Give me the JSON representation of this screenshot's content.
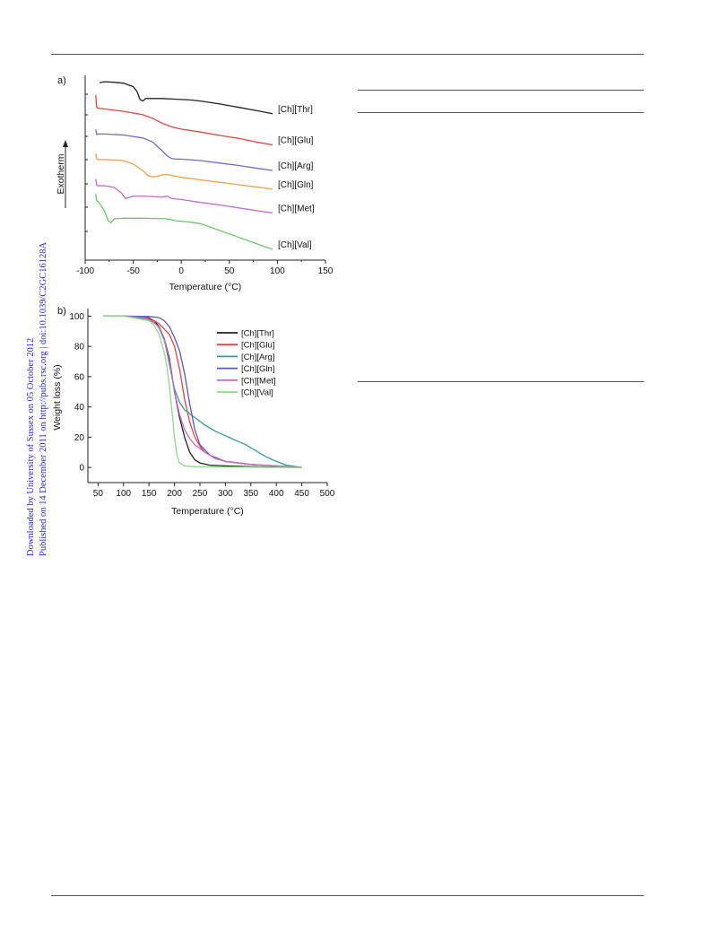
{
  "sidebar": {
    "line1": "Downloaded by University of Sussex on 05 October 2012",
    "line2": "Published on 14 December 2011 on http://pubs.rsc.org | doi:10.1039/C2GC16128A"
  },
  "chart_data": [
    {
      "type": "line",
      "panel_label": "a)",
      "xlabel": "Temperature (°C)",
      "ylabel": "Exotherm",
      "xlim": [
        -100,
        150
      ],
      "xticks": [
        -100,
        -50,
        0,
        50,
        100,
        150
      ],
      "y_ticks_shown": false,
      "grid": false,
      "legend": "curve labels at right end",
      "series": [
        {
          "name": "[Ch][Thr]",
          "color": "#222222",
          "x": [
            -85,
            -80,
            -70,
            -60,
            -50,
            -46,
            -43,
            -40,
            -37,
            -30,
            -20,
            -10,
            0,
            10,
            20,
            40,
            60,
            80,
            95
          ],
          "y": [
            3.7,
            3.72,
            3.71,
            3.69,
            3.62,
            3.52,
            3.36,
            3.33,
            3.38,
            3.38,
            3.38,
            3.37,
            3.36,
            3.35,
            3.33,
            3.27,
            3.2,
            3.13,
            3.07
          ]
        },
        {
          "name": "[Ch][Glu]",
          "color": "#e64545",
          "x": [
            -89,
            -88,
            -86,
            -80,
            -60,
            -40,
            -30,
            -20,
            -12,
            -5,
            0,
            20,
            40,
            60,
            80,
            95
          ],
          "y": [
            3.45,
            3.2,
            3.18,
            3.17,
            3.12,
            3.05,
            2.98,
            2.88,
            2.82,
            2.78,
            2.76,
            2.7,
            2.63,
            2.57,
            2.49,
            2.44
          ]
        },
        {
          "name": "[Ch][Arg]",
          "color": "#7a6ac8",
          "x": [
            -89,
            -88,
            -86,
            -80,
            -60,
            -40,
            -30,
            -20,
            -15,
            -10,
            -5,
            0,
            20,
            40,
            60,
            80,
            95
          ],
          "y": [
            2.75,
            2.65,
            2.66,
            2.66,
            2.64,
            2.58,
            2.5,
            2.32,
            2.22,
            2.16,
            2.15,
            2.15,
            2.12,
            2.07,
            2.02,
            1.96,
            1.92
          ]
        },
        {
          "name": "[Ch][Gln]",
          "color": "#f0a050",
          "x": [
            -89,
            -88,
            -86,
            -80,
            -60,
            -50,
            -40,
            -35,
            -30,
            -25,
            -20,
            -15,
            -10,
            0,
            20,
            40,
            60,
            80,
            95
          ],
          "y": [
            2.26,
            2.15,
            2.14,
            2.14,
            2.12,
            2.05,
            1.92,
            1.82,
            1.79,
            1.8,
            1.83,
            1.84,
            1.82,
            1.78,
            1.73,
            1.68,
            1.63,
            1.58,
            1.54
          ]
        },
        {
          "name": "[Ch][Met]",
          "color": "#c86ac8",
          "x": [
            -89,
            -88,
            -86,
            -80,
            -70,
            -62,
            -58,
            -55,
            -50,
            -40,
            -20,
            -15,
            -10,
            0,
            20,
            40,
            60,
            80,
            95
          ],
          "y": [
            1.75,
            1.62,
            1.61,
            1.61,
            1.58,
            1.46,
            1.35,
            1.37,
            1.4,
            1.4,
            1.38,
            1.4,
            1.35,
            1.33,
            1.27,
            1.22,
            1.16,
            1.1,
            1.06
          ]
        },
        {
          "name": "[Ch][Val]",
          "color": "#6cc86a",
          "x": [
            -89,
            -88,
            -86,
            -84,
            -80,
            -76,
            -73,
            -70,
            -60,
            -40,
            -15,
            -5,
            10,
            20,
            40,
            60,
            80,
            95
          ],
          "y": [
            1.45,
            1.3,
            1.28,
            1.22,
            1.1,
            0.9,
            0.86,
            0.94,
            0.95,
            0.95,
            0.94,
            0.9,
            0.87,
            0.84,
            0.7,
            0.56,
            0.42,
            0.32
          ]
        }
      ]
    },
    {
      "type": "line",
      "panel_label": "b)",
      "xlabel": "Temperature (°C)",
      "ylabel": "Weight loss (%)",
      "xlim": [
        30,
        500
      ],
      "ylim": [
        -10,
        105
      ],
      "xticks": [
        50,
        100,
        150,
        200,
        250,
        300,
        350,
        400,
        450,
        500
      ],
      "yticks": [
        0,
        20,
        40,
        60,
        80,
        100
      ],
      "grid": false,
      "legend": "top-right",
      "series": [
        {
          "name": "[Ch][Thr]",
          "color": "#222222",
          "x": [
            60,
            100,
            140,
            160,
            170,
            180,
            190,
            200,
            210,
            220,
            230,
            240,
            250,
            270,
            300,
            350,
            400,
            450
          ],
          "y": [
            100,
            100,
            99.5,
            97,
            93,
            85,
            72,
            50,
            33,
            20,
            10,
            5,
            3,
            1.5,
            1,
            0.5,
            0.2,
            0
          ]
        },
        {
          "name": "[Ch][Glu]",
          "color": "#e64545",
          "x": [
            60,
            100,
            150,
            170,
            190,
            200,
            210,
            220,
            230,
            240,
            250,
            260,
            280,
            300,
            350,
            400,
            450
          ],
          "y": [
            100,
            100,
            99,
            95,
            88,
            80,
            65,
            45,
            30,
            20,
            14,
            10,
            6,
            4,
            2,
            1,
            0
          ]
        },
        {
          "name": "[Ch][Arg]",
          "color": "#3a9a98",
          "x": [
            60,
            100,
            150,
            170,
            180,
            190,
            200,
            210,
            220,
            240,
            260,
            280,
            300,
            320,
            340,
            360,
            380,
            400,
            420,
            440,
            450
          ],
          "y": [
            100,
            100,
            98,
            93,
            85,
            68,
            52,
            43,
            38,
            33,
            28,
            24,
            21,
            18,
            15,
            11,
            7,
            4,
            1.5,
            0.5,
            0
          ]
        },
        {
          "name": "[Ch][Gln]",
          "color": "#5a5ab8",
          "x": [
            60,
            100,
            150,
            170,
            180,
            190,
            200,
            210,
            220,
            230,
            240,
            250,
            270,
            300,
            350,
            400,
            450
          ],
          "y": [
            100,
            100,
            99.8,
            99,
            97,
            93,
            86,
            77,
            62,
            42,
            25,
            15,
            8,
            4,
            2,
            1,
            0
          ]
        },
        {
          "name": "[Ch][Met]",
          "color": "#c86ac8",
          "x": [
            60,
            100,
            140,
            160,
            170,
            180,
            190,
            200,
            210,
            220,
            230,
            240,
            260,
            280,
            300,
            350,
            400,
            450
          ],
          "y": [
            100,
            100,
            99,
            96,
            92,
            84,
            70,
            50,
            35,
            25,
            19,
            15,
            10,
            6,
            4,
            2,
            1,
            0
          ]
        },
        {
          "name": "[Ch][Val]",
          "color": "#8ed88a",
          "x": [
            60,
            100,
            150,
            160,
            170,
            180,
            185,
            190,
            195,
            200,
            205,
            210,
            220,
            240,
            300,
            400,
            450
          ],
          "y": [
            100,
            100,
            97,
            94,
            88,
            76,
            67,
            54,
            38,
            20,
            8,
            3,
            1,
            0.5,
            0.3,
            0.1,
            0
          ]
        }
      ]
    }
  ]
}
